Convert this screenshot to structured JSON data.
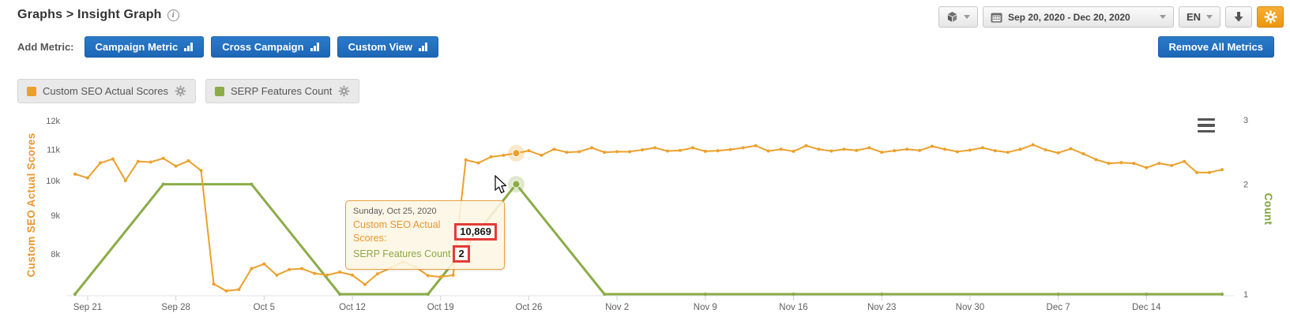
{
  "header": {
    "title": "Graphs > Insight Graph",
    "info_icon": "i",
    "language": "EN",
    "date_range": "Sep 20, 2020 - Dec 20, 2020"
  },
  "toolbar": {
    "add_metric_label": "Add Metric:",
    "metric_buttons": [
      "Campaign Metric",
      "Cross Campaign",
      "Custom View"
    ],
    "remove_all_label": "Remove All Metrics"
  },
  "legend_pills": [
    {
      "label": "Custom SEO Actual Scores",
      "color": "#eca02c"
    },
    {
      "label": "SERP Features Count",
      "color": "#8bac47"
    }
  ],
  "tooltip": {
    "date": "Sunday, Oct 25, 2020",
    "rows": [
      {
        "label": "Custom SEO Actual Scores:",
        "value": "10,869"
      },
      {
        "label": "SERP Features Count",
        "value": "2"
      }
    ]
  },
  "chart_data": {
    "type": "line",
    "title": "",
    "start_date": "Sep 20, 2020",
    "end_date": "Dec 20, 2020",
    "x_ticks": [
      {
        "label": "Sep 21",
        "day": 1
      },
      {
        "label": "Sep 28",
        "day": 8
      },
      {
        "label": "Oct 5",
        "day": 15
      },
      {
        "label": "Oct 12",
        "day": 22
      },
      {
        "label": "Oct 19",
        "day": 29
      },
      {
        "label": "Oct 26",
        "day": 36
      },
      {
        "label": "Nov 2",
        "day": 43
      },
      {
        "label": "Nov 9",
        "day": 50
      },
      {
        "label": "Nov 16",
        "day": 57
      },
      {
        "label": "Nov 23",
        "day": 64
      },
      {
        "label": "Nov 30",
        "day": 71
      },
      {
        "label": "Dec 7",
        "day": 78
      },
      {
        "label": "Dec 14",
        "day": 85
      }
    ],
    "y_axis_left": {
      "title": "Custom SEO Actual Scores",
      "color": "#e8962e",
      "scale": "log",
      "ticks": [
        {
          "label": "12k",
          "value": 12000
        },
        {
          "label": "11k",
          "value": 11000
        },
        {
          "label": "10k",
          "value": 10000
        },
        {
          "label": "9k",
          "value": 9000
        },
        {
          "label": "8k",
          "value": 8000
        }
      ]
    },
    "y_axis_right": {
      "title": "Count",
      "color": "#7da33c",
      "scale": "log",
      "ticks": [
        {
          "label": "3",
          "value": 3
        },
        {
          "label": "2",
          "value": 2
        },
        {
          "label": "1",
          "value": 1
        }
      ]
    },
    "series": [
      {
        "name": "Custom SEO Actual Scores",
        "color": "#eca02c",
        "axis": "left",
        "start_day": 0,
        "values": [
          10200,
          10080,
          10550,
          10680,
          10000,
          10600,
          10580,
          10700,
          10450,
          10620,
          10310,
          7300,
          7150,
          7180,
          7650,
          7760,
          7500,
          7630,
          7650,
          7540,
          7500,
          7570,
          7500,
          7290,
          7530,
          7660,
          7810,
          7690,
          7490,
          7460,
          7500,
          10650,
          10550,
          10750,
          10800,
          10869,
          10950,
          10800,
          11000,
          10900,
          10920,
          11050,
          10900,
          10920,
          10920,
          10980,
          11050,
          10940,
          10960,
          11050,
          10930,
          10950,
          10990,
          11050,
          11120,
          10940,
          11000,
          10930,
          11120,
          11000,
          10940,
          11000,
          10960,
          11050,
          10900,
          10950,
          11000,
          10960,
          11100,
          11000,
          10920,
          10970,
          11050,
          10950,
          10900,
          11000,
          11150,
          10980,
          10880,
          11020,
          10850,
          10660,
          10540,
          10560,
          10540,
          10400,
          10540,
          10470,
          10600,
          10250,
          10250,
          10340
        ]
      },
      {
        "name": "SERP Features Count",
        "color": "#8bac47",
        "axis": "right",
        "points": [
          [
            0,
            1
          ],
          [
            7,
            2
          ],
          [
            14,
            2
          ],
          [
            21,
            1
          ],
          [
            28,
            1
          ],
          [
            35,
            2
          ],
          [
            42,
            1
          ],
          [
            50,
            1
          ],
          [
            57,
            1
          ],
          [
            64,
            1
          ],
          [
            78,
            1
          ],
          [
            85,
            1
          ],
          [
            91,
            1
          ]
        ]
      }
    ],
    "highlight": {
      "date": "Oct 25, 2020",
      "day_index": 35,
      "custom_seo_actual_scores": 10869,
      "serp_features_count": 2
    }
  }
}
